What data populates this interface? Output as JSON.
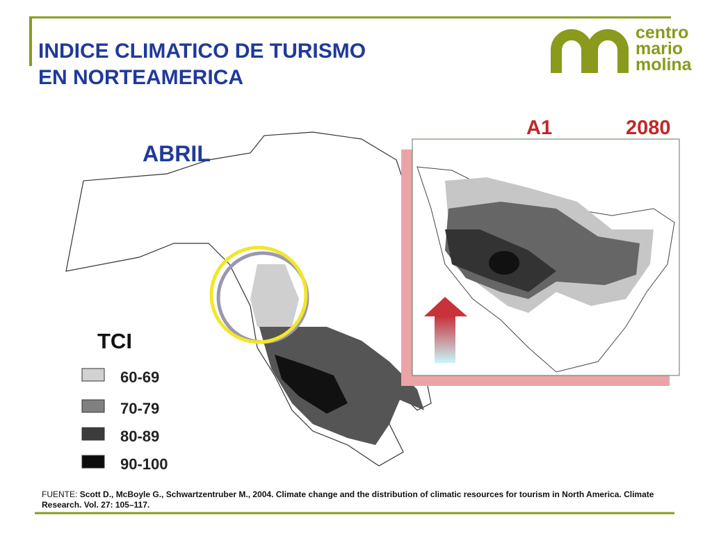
{
  "header": {
    "title": [
      "INDICE CLIMATICO DE TURISMO",
      "EN NORTEAMERICA"
    ],
    "logo": [
      "centro",
      "mario",
      "molina"
    ]
  },
  "maps": {
    "month": "ABRIL",
    "scenario": "A1",
    "year": "2080"
  },
  "legend": {
    "title": "TCI",
    "items": [
      "60-69",
      "70-79",
      "80-89",
      "90-100"
    ]
  },
  "footer": {
    "prefix": "FUENTE:",
    "citation": "Scott D., McBoyle G., Schwartzentruber M., 2004. Climate change and the distribution of climatic resources for tourism in North America. Climate Research. Vol. 27: 105–117."
  }
}
